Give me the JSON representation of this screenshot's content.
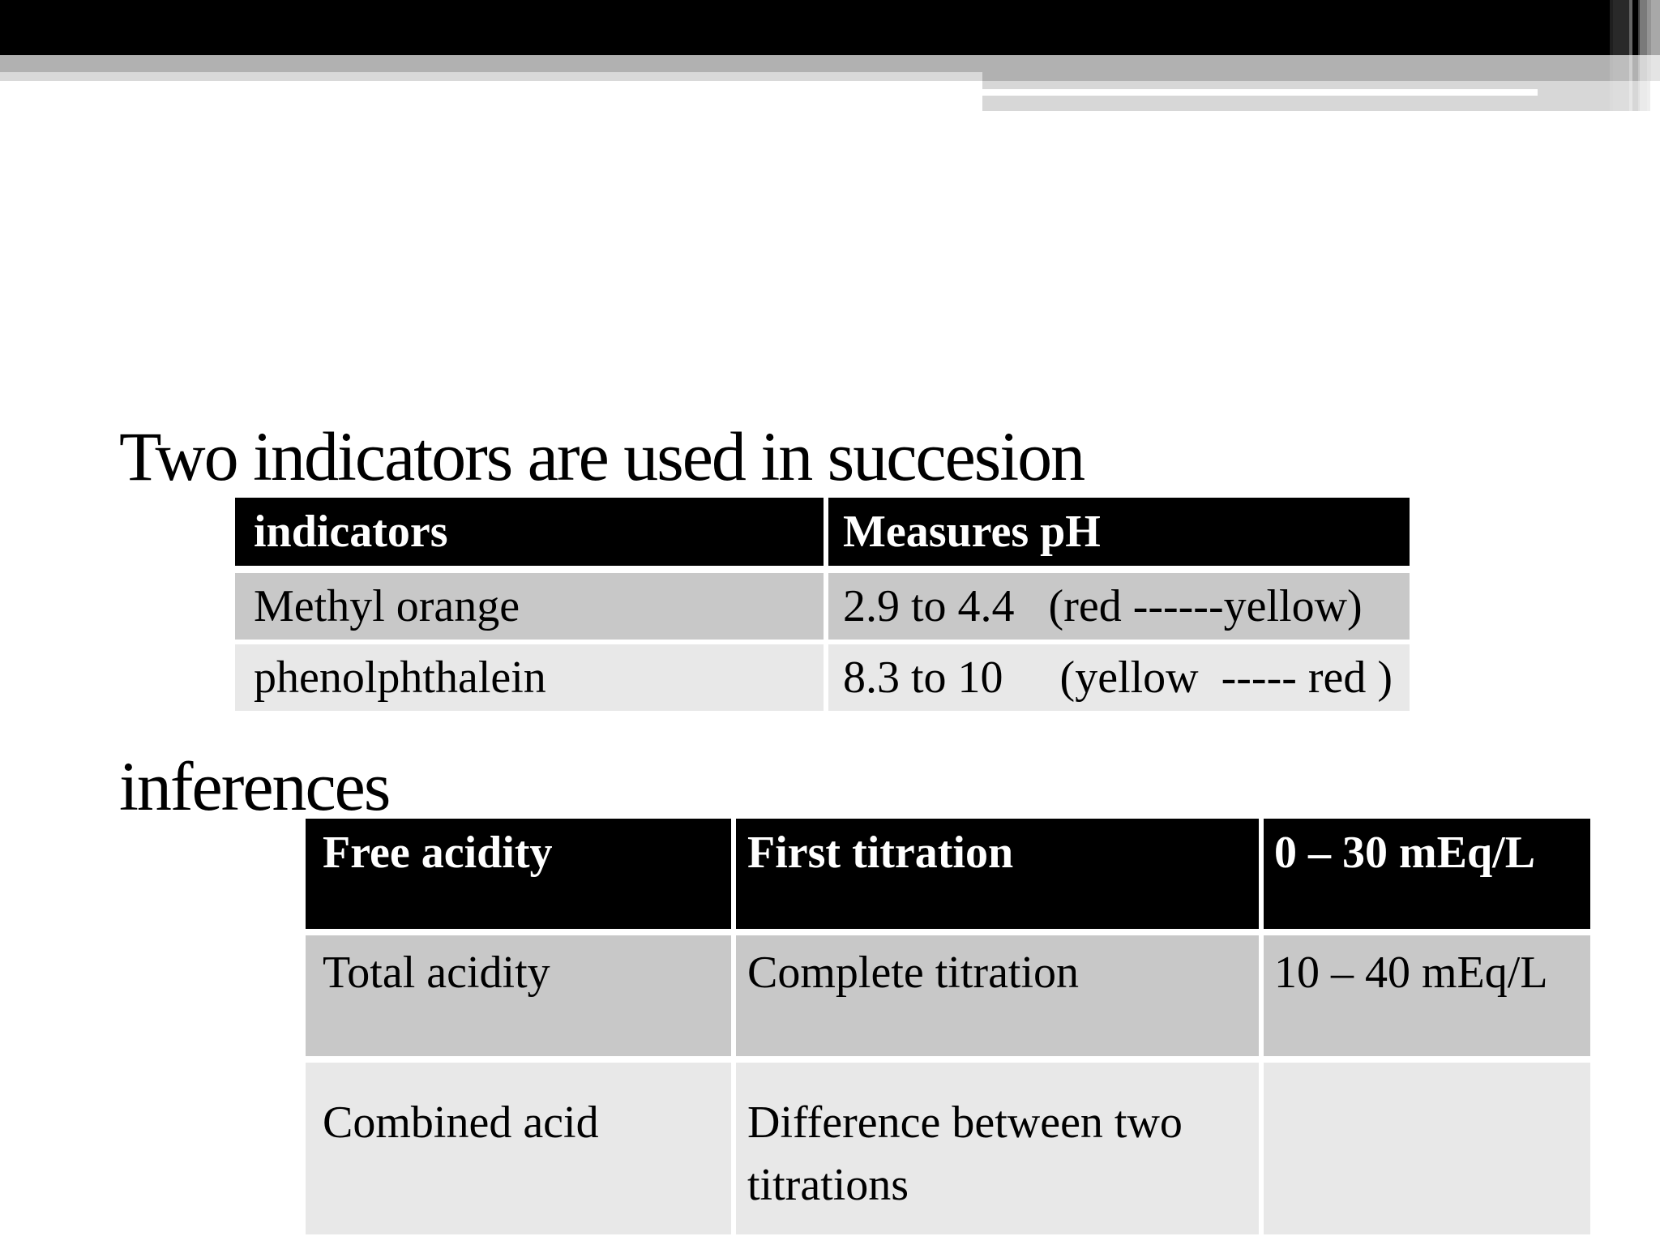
{
  "slide": {
    "title": "Two indicators are used in succesion",
    "inferences_heading": "inferences"
  },
  "indicators_table": {
    "headers": [
      "indicators",
      "Measures pH"
    ],
    "rows": [
      [
        "Methyl orange",
        "2.9 to 4.4   (red ------yellow)"
      ],
      [
        "phenolphthalein",
        "8.3 to 10     (yellow  ----- red )"
      ]
    ]
  },
  "inferences_table": {
    "headers": [
      "Free acidity",
      "First titration",
      "0 – 30 mEq/L"
    ],
    "rows": [
      [
        "Total acidity",
        "Complete titration",
        "10 – 40 mEq/L"
      ],
      [
        "Combined acid",
        "Difference between two titrations",
        ""
      ]
    ]
  },
  "colors": {
    "header-bg": "#000000",
    "header-text": "#ffffff",
    "text": "#000000",
    "row-dark": "#c8c8c8",
    "row-light": "#e8e8e8",
    "band-gray": "#b1b1b1",
    "band-mid": "#d7d7d7",
    "band-light": "#d9d9d9"
  }
}
